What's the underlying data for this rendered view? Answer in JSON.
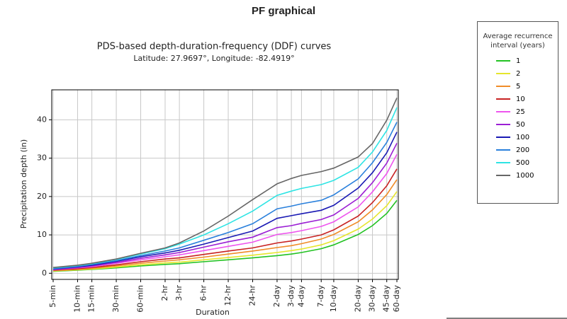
{
  "header": {
    "title": "PF graphical"
  },
  "chart_data": {
    "type": "line",
    "title": "PDS-based depth-duration-frequency (DDF) curves",
    "subtitle": "Latitude: 27.9697°, Longitude: -82.4919°",
    "x_label": "Duration",
    "y_label": "Precipitation depth (in)",
    "legend_title": "Average recurrence interval (years)",
    "categories": [
      "5-min",
      "10-min",
      "15-min",
      "30-min",
      "60-min",
      "2-hr",
      "3-hr",
      "6-hr",
      "12-hr",
      "24-hr",
      "2-day",
      "3-day",
      "4-day",
      "7-day",
      "10-day",
      "20-day",
      "30-day",
      "45-day",
      "60-day"
    ],
    "ylim": [
      -1.6,
      47.8
    ],
    "yticks": [
      0,
      10,
      20,
      30,
      40
    ],
    "grid": true,
    "series": [
      {
        "name": "1",
        "color": "#22c222",
        "values": [
          0.5,
          0.8,
          1.0,
          1.4,
          1.9,
          2.3,
          2.5,
          3.0,
          3.5,
          4.0,
          4.6,
          5.0,
          5.4,
          6.4,
          7.4,
          10.1,
          12.4,
          15.6,
          19.0
        ]
      },
      {
        "name": "2",
        "color": "#e6e62c",
        "values": [
          0.6,
          0.9,
          1.1,
          1.6,
          2.2,
          2.7,
          2.9,
          3.5,
          4.1,
          4.7,
          5.4,
          5.9,
          6.3,
          7.4,
          8.5,
          11.5,
          14.1,
          17.6,
          21.3
        ]
      },
      {
        "name": "5",
        "color": "#f08c28",
        "values": [
          0.7,
          1.0,
          1.3,
          1.9,
          2.6,
          3.2,
          3.5,
          4.2,
          5.0,
          5.8,
          6.7,
          7.2,
          7.7,
          8.9,
          10.1,
          13.4,
          16.5,
          20.5,
          24.4
        ]
      },
      {
        "name": "10",
        "color": "#c82222",
        "values": [
          0.8,
          1.2,
          1.5,
          2.2,
          3.0,
          3.7,
          4.0,
          4.9,
          5.8,
          6.6,
          7.9,
          8.4,
          8.9,
          10.0,
          11.3,
          14.9,
          18.4,
          22.8,
          27.2
        ]
      },
      {
        "name": "25",
        "color": "#ee55ee",
        "values": [
          0.9,
          1.4,
          1.7,
          2.6,
          3.5,
          4.3,
          4.8,
          5.9,
          7.0,
          8.1,
          10.1,
          10.6,
          11.1,
          12.2,
          13.4,
          17.3,
          21.2,
          26.0,
          31.0
        ]
      },
      {
        "name": "50",
        "color": "#9b1fd4",
        "values": [
          1.0,
          1.5,
          1.9,
          2.8,
          3.9,
          4.8,
          5.4,
          6.8,
          8.2,
          9.4,
          11.9,
          12.4,
          13.0,
          14.0,
          15.2,
          19.5,
          23.6,
          28.7,
          33.9
        ]
      },
      {
        "name": "100",
        "color": "#1a1ab4",
        "values": [
          1.1,
          1.7,
          2.1,
          3.1,
          4.3,
          5.3,
          6.0,
          7.6,
          9.3,
          11.0,
          14.3,
          15.0,
          15.5,
          16.4,
          17.7,
          22.2,
          26.2,
          31.4,
          36.8
        ]
      },
      {
        "name": "200",
        "color": "#2a80dc",
        "values": [
          1.2,
          1.8,
          2.3,
          3.3,
          4.6,
          5.8,
          6.6,
          8.6,
          10.6,
          12.9,
          16.8,
          17.5,
          18.1,
          19.0,
          20.4,
          24.6,
          28.8,
          34.1,
          39.4
        ]
      },
      {
        "name": "500",
        "color": "#2ee4e4",
        "values": [
          1.4,
          2.0,
          2.5,
          3.6,
          5.0,
          6.4,
          7.6,
          10.0,
          12.9,
          16.2,
          20.3,
          21.4,
          22.1,
          23.1,
          24.2,
          27.6,
          31.6,
          37.2,
          43.2
        ]
      },
      {
        "name": "1000",
        "color": "#666666",
        "values": [
          1.5,
          2.1,
          2.6,
          3.7,
          5.2,
          6.6,
          7.9,
          11.0,
          14.9,
          19.2,
          23.3,
          24.7,
          25.5,
          26.5,
          27.4,
          30.3,
          33.8,
          39.9,
          45.7
        ]
      }
    ]
  }
}
